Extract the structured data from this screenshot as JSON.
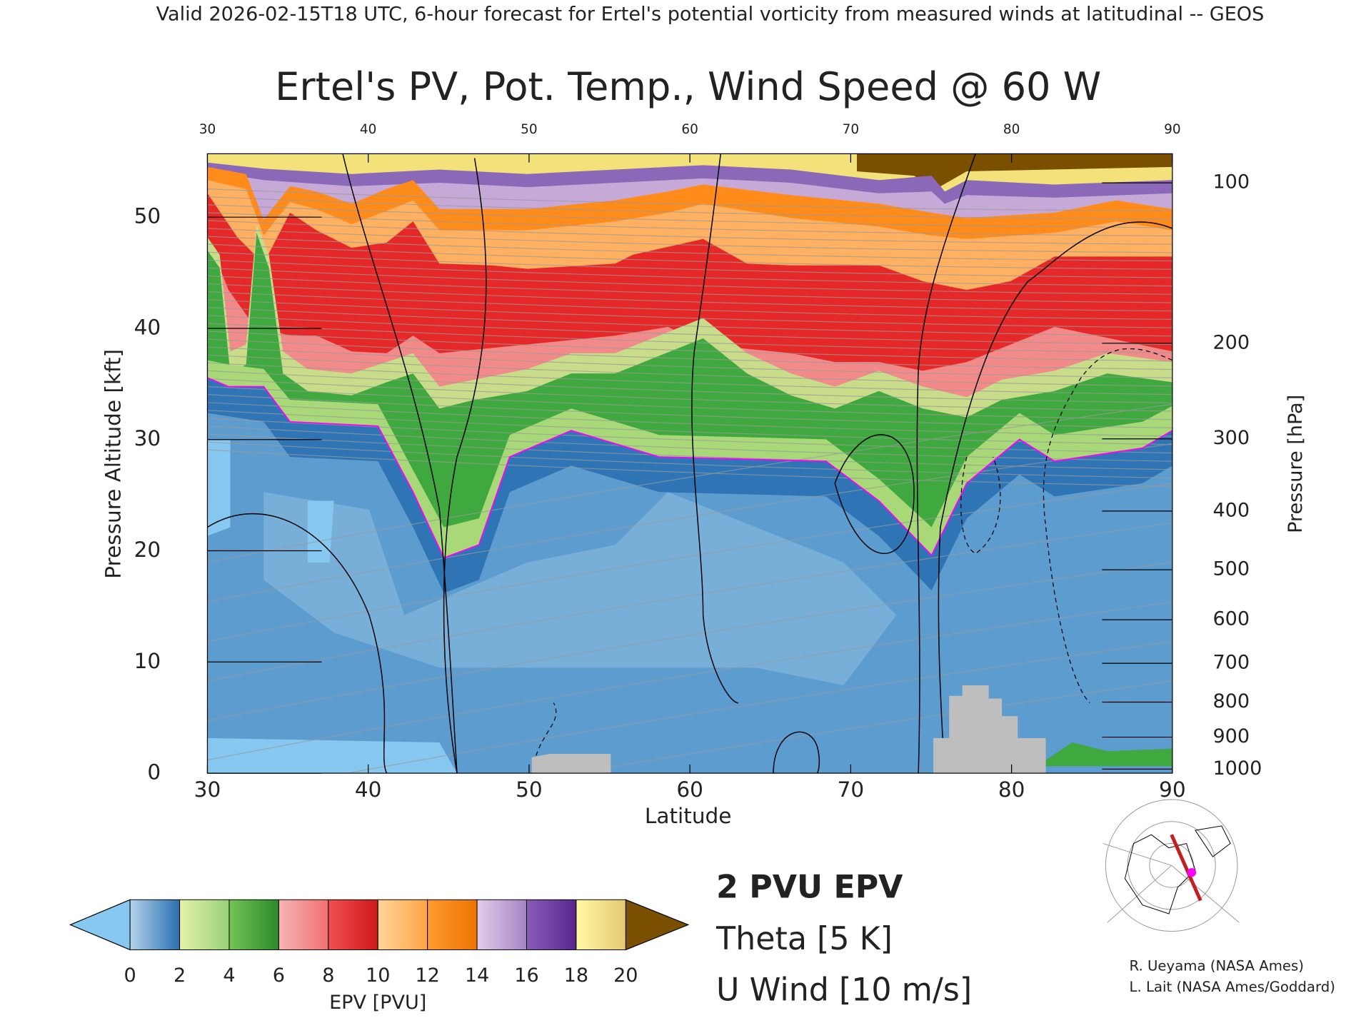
{
  "chart_data": {
    "type": "contour",
    "subtitle": "Valid 2026-02-15T18 UTC, 6-hour forecast for Ertel's potential vorticity from measured winds at latitudinal -- GEOS",
    "title": "Ertel's PV, Pot. Temp., Wind Speed @ 60 W",
    "x_label": "Latitude",
    "xlim": [
      30,
      90
    ],
    "xticks": [
      30,
      40,
      50,
      60,
      70,
      80,
      90
    ],
    "y_label": "Pressure Altitude [kft]",
    "ylim": [
      0,
      55.7
    ],
    "yticks": [
      0,
      10,
      20,
      30,
      40,
      50
    ],
    "y2_label": "Pressure [hPa]",
    "y2ticks": [
      100,
      200,
      300,
      400,
      500,
      600,
      700,
      800,
      900,
      1000
    ],
    "colorbar": {
      "label": "EPV [PVU]",
      "ticks": [
        0,
        2,
        4,
        6,
        8,
        10,
        12,
        14,
        16,
        18,
        20
      ],
      "colors": [
        [
          "#b3d3ea",
          "#2a6fb0"
        ],
        [
          "#e4f2a8",
          "#9ad07a"
        ],
        [
          "#74c454",
          "#2a8a2a"
        ],
        [
          "#f8b4b4",
          "#f07070"
        ],
        [
          "#f05050",
          "#d01818"
        ],
        [
          "#ffd49a",
          "#ffa446"
        ],
        [
          "#ff9a30",
          "#ec7400"
        ],
        [
          "#e2cce8",
          "#a584c4"
        ],
        [
          "#8a5cb8",
          "#56288e"
        ],
        [
          "#fff9a6",
          "#e6c872"
        ]
      ],
      "under_color": "#87c8f0",
      "over_color": "#7a5000"
    },
    "legend": [
      {
        "label": "2 PVU EPV",
        "color": "#ff00ff"
      },
      {
        "label": "Theta [5 K]",
        "color": "#b4b4b4"
      },
      {
        "label": "U Wind [10 m/s]",
        "color": "#000000"
      }
    ],
    "annotations": [
      "R. Ueyama (NASA Ames)",
      "L. Lait (NASA Ames/Goddard)"
    ]
  }
}
